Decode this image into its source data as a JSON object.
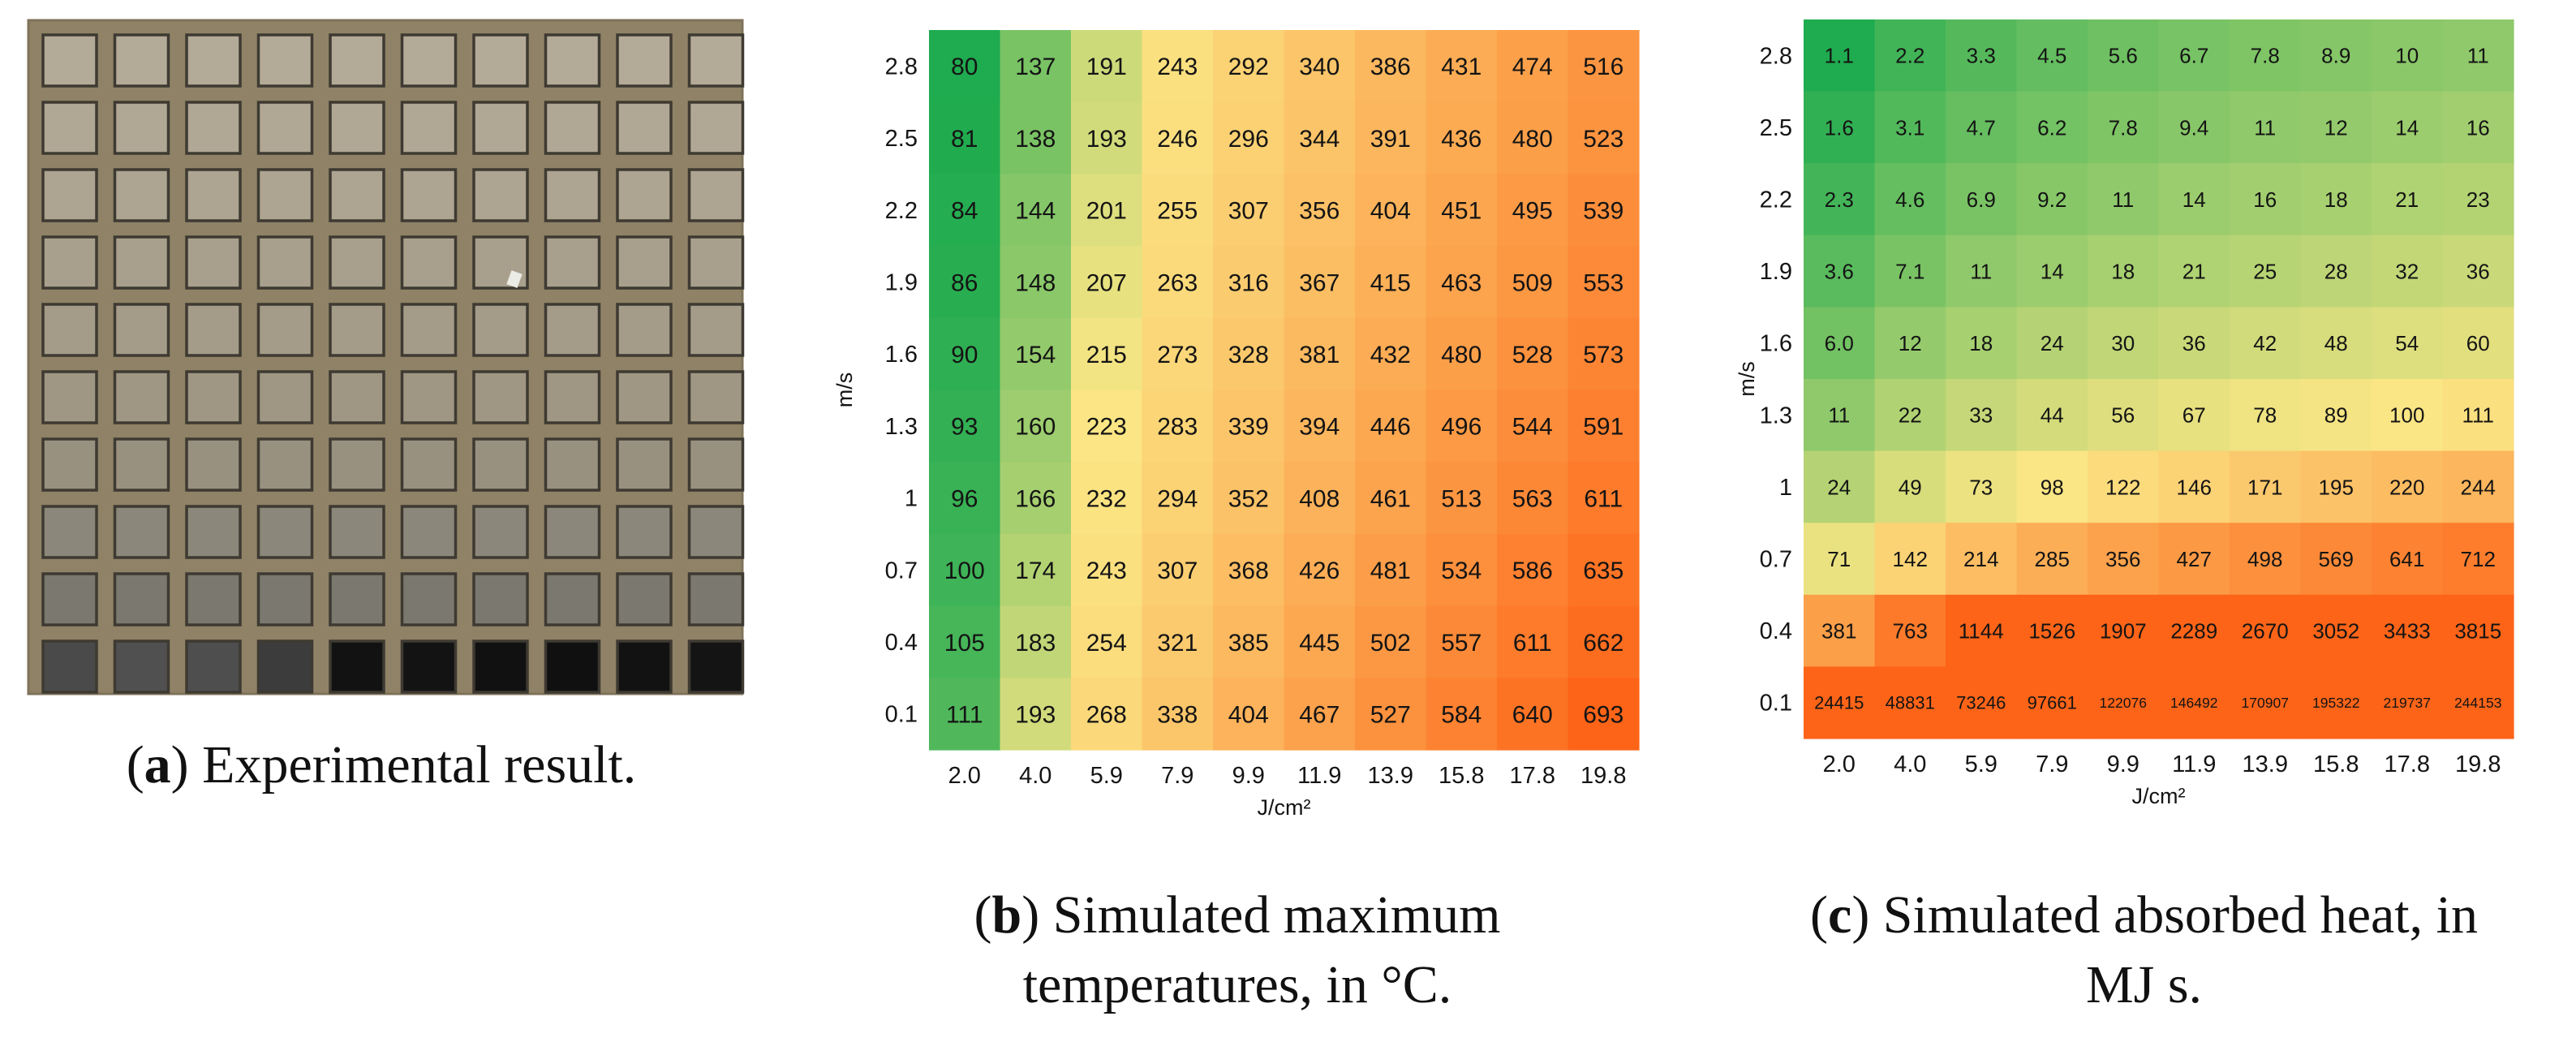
{
  "panel_a": {
    "label": "a",
    "caption": "Experimental result.",
    "grid": {
      "rows": 10,
      "cols": 10
    },
    "row_tones": [
      "#b3aa98",
      "#b0a795",
      "#ada491",
      "#a8a08d",
      "#a49b89",
      "#9f9784",
      "#999180",
      "#8c877b",
      "#7b7870"
    ],
    "bottom_row_tones": [
      "#4a4a4a",
      "#505050",
      "#4e4e4e",
      "#3c3c3c",
      "#121212",
      "#131313",
      "#111111",
      "#101010",
      "#121212",
      "#141414"
    ],
    "colors": {
      "plate": "#8f8266",
      "plate_edge": "#7e7259",
      "frame": "#3e3a32"
    }
  },
  "panel_b": {
    "label": "b",
    "caption_line1": "Simulated maximum",
    "caption_line2": "temperatures, in °C."
  },
  "panel_c": {
    "label": "c",
    "caption_line1": "Simulated absorbed heat, in",
    "caption_line2": "MJ s."
  },
  "chart_data": [
    {
      "type": "heatmap",
      "title": "Simulated maximum temperatures, in °C.",
      "xlabel": "J/cm²",
      "ylabel": "m/s",
      "x": [
        "2.0",
        "4.0",
        "5.9",
        "7.9",
        "9.9",
        "11.9",
        "13.9",
        "15.8",
        "17.8",
        "19.8"
      ],
      "y": [
        "2.8",
        "2.5",
        "2.2",
        "1.9",
        "1.6",
        "1.3",
        "1",
        "0.7",
        "0.4",
        "0.1"
      ],
      "values": [
        [
          80,
          137,
          191,
          243,
          292,
          340,
          386,
          431,
          474,
          516
        ],
        [
          81,
          138,
          193,
          246,
          296,
          344,
          391,
          436,
          480,
          523
        ],
        [
          84,
          144,
          201,
          255,
          307,
          356,
          404,
          451,
          495,
          539
        ],
        [
          86,
          148,
          207,
          263,
          316,
          367,
          415,
          463,
          509,
          553
        ],
        [
          90,
          154,
          215,
          273,
          328,
          381,
          432,
          480,
          528,
          573
        ],
        [
          93,
          160,
          223,
          283,
          339,
          394,
          446,
          496,
          544,
          591
        ],
        [
          96,
          166,
          232,
          294,
          352,
          408,
          461,
          513,
          563,
          611
        ],
        [
          100,
          174,
          243,
          307,
          368,
          426,
          481,
          534,
          586,
          635
        ],
        [
          105,
          183,
          254,
          321,
          385,
          445,
          502,
          557,
          611,
          662
        ],
        [
          111,
          193,
          268,
          338,
          404,
          467,
          527,
          584,
          640,
          693
        ]
      ],
      "color_scale": {
        "min": 80,
        "mid": 220,
        "max": 693,
        "low": "#1fab4f",
        "mid_color": "#fbe685",
        "high": "#fd6418"
      }
    },
    {
      "type": "heatmap",
      "title": "Simulated absorbed heat, in MJ s.",
      "xlabel": "J/cm²",
      "ylabel": "m/s",
      "x": [
        "2.0",
        "4.0",
        "5.9",
        "7.9",
        "9.9",
        "11.9",
        "13.9",
        "15.8",
        "17.8",
        "19.8"
      ],
      "y": [
        "2.8",
        "2.5",
        "2.2",
        "1.9",
        "1.6",
        "1.3",
        "1",
        "0.7",
        "0.4",
        "0.1"
      ],
      "values": [
        [
          "1.1",
          "2.2",
          "3.3",
          "4.5",
          "5.6",
          "6.7",
          "7.8",
          "8.9",
          "10",
          "11"
        ],
        [
          "1.6",
          "3.1",
          "4.7",
          "6.2",
          "7.8",
          "9.4",
          "11",
          "12",
          "14",
          "16"
        ],
        [
          "2.3",
          "4.6",
          "6.9",
          "9.2",
          "11",
          "14",
          "16",
          "18",
          "21",
          "23"
        ],
        [
          "3.6",
          "7.1",
          "11",
          "14",
          "18",
          "21",
          "25",
          "28",
          "32",
          "36"
        ],
        [
          "6.0",
          "12",
          "18",
          "24",
          "30",
          "36",
          "42",
          "48",
          "54",
          "60"
        ],
        [
          "11",
          "22",
          "33",
          "44",
          "56",
          "67",
          "78",
          "89",
          "100",
          "111"
        ],
        [
          "24",
          "49",
          "73",
          "98",
          "122",
          "146",
          "171",
          "195",
          "220",
          "244"
        ],
        [
          "71",
          "142",
          "214",
          "285",
          "356",
          "427",
          "498",
          "569",
          "641",
          "712"
        ],
        [
          "381",
          "763",
          "1144",
          "1526",
          "1907",
          "2289",
          "2670",
          "3052",
          "3433",
          "3815"
        ],
        [
          "24415",
          "48831",
          "73246",
          "97661",
          "122076",
          "146492",
          "170907",
          "195322",
          "219737",
          "244153"
        ]
      ],
      "color_scale": {
        "min": 1.1,
        "mid": 100,
        "max": 1144,
        "low": "#1fab4f",
        "mid_color": "#fbe685",
        "high": "#fd6418",
        "log": true
      }
    }
  ]
}
